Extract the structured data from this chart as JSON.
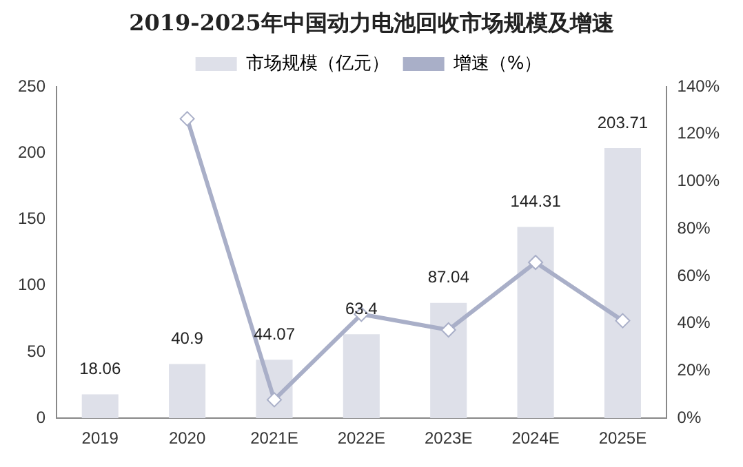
{
  "chart_data": {
    "type": "bar",
    "title": "2019-2025年中国动力电池回收市场规模及增速",
    "categories": [
      "2019",
      "2020",
      "2021E",
      "2022E",
      "2023E",
      "2024E",
      "2025E"
    ],
    "series": [
      {
        "name": "市场规模（亿元）",
        "color": "#dee0e9",
        "values": [
          18.06,
          40.9,
          44.07,
          63.4,
          87.04,
          144.31,
          203.71
        ],
        "value_labels": [
          "18.06",
          "40.9",
          "44.07",
          "63.4",
          "87.04",
          "144.31",
          "203.71"
        ]
      },
      {
        "name": "增速（%）",
        "type": "line",
        "axis": "y2",
        "color": "#a9afc8",
        "marker": "diamond",
        "values": [
          null,
          126.5,
          7.8,
          43.9,
          37.3,
          65.8,
          41.2
        ]
      }
    ],
    "ylim": [
      0,
      250
    ],
    "yticks": [
      0,
      50,
      100,
      150,
      200,
      250
    ],
    "y2lim": [
      0,
      140
    ],
    "y2ticks": [
      {
        "value": 0,
        "label": "0%"
      },
      {
        "value": 20,
        "label": "20%"
      },
      {
        "value": 40,
        "label": "40%"
      },
      {
        "value": 60,
        "label": "60%"
      },
      {
        "value": 80,
        "label": "80%"
      },
      {
        "value": 100,
        "label": "100%"
      },
      {
        "value": 120,
        "label": "120%"
      },
      {
        "value": 140,
        "label": "140%"
      }
    ],
    "grid": false,
    "legend": "top"
  }
}
